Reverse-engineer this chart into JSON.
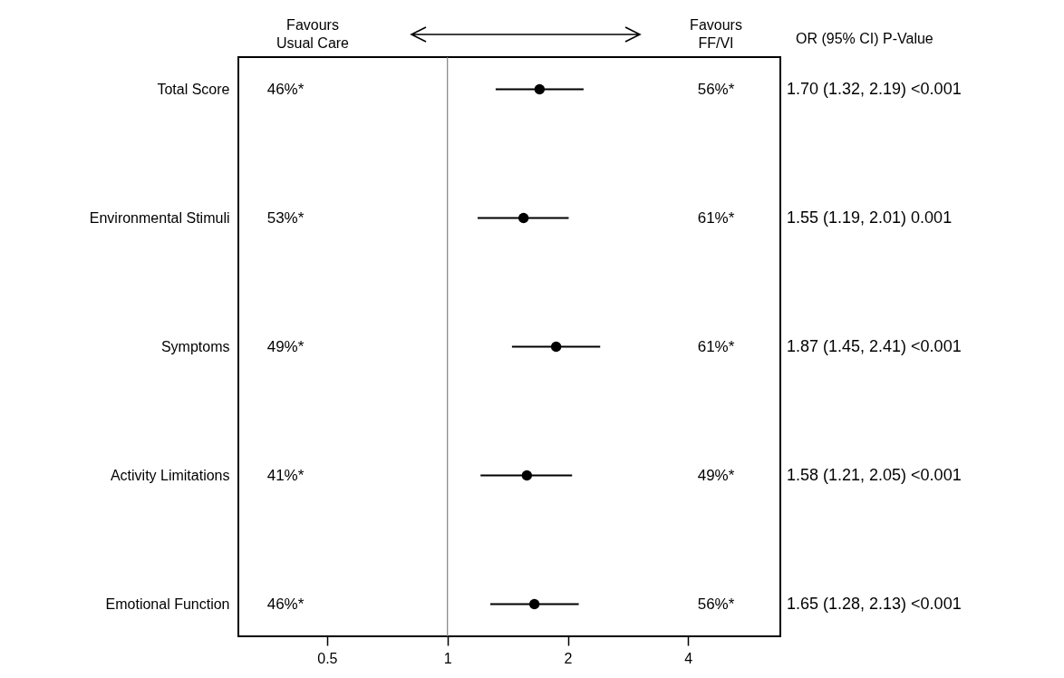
{
  "chart_data": {
    "type": "scatter",
    "orientation": "horizontal",
    "log": "x",
    "grid": false,
    "marker": "circle",
    "color": "#000000",
    "categories": [
      "Total Score",
      "Environmental Stimuli",
      "Symptoms",
      "Activity Limitations",
      "Emotional Function"
    ],
    "values": [
      1.7,
      1.55,
      1.87,
      1.58,
      1.65
    ],
    "errors": [
      [
        1.32,
        2.19
      ],
      [
        1.19,
        2.01
      ],
      [
        1.45,
        2.41
      ],
      [
        1.21,
        2.05
      ],
      [
        1.28,
        2.13
      ]
    ],
    "xlim": [
      0.3,
      6.8
    ],
    "xticks": [
      0.5,
      1,
      2,
      4
    ],
    "ref_lines": [
      {
        "axis": "x",
        "value": 1,
        "color": "#808080"
      }
    ],
    "annotations": [
      "Favours\nUsual Care",
      "Favours\nFF/VI",
      "OR (95% CI) P-Value",
      "46%*",
      "56%*",
      "1.70 (1.32, 2.19) <0.001",
      "53%*",
      "61%*",
      "1.55 (1.19, 2.01) 0.001",
      "49%*",
      "61%*",
      "1.87 (1.45, 2.41) <0.001",
      "41%*",
      "49%*",
      "1.58 (1.21, 2.05) <0.001",
      "46%*",
      "56%*",
      "1.65 (1.28, 2.13) <0.001"
    ]
  }
}
